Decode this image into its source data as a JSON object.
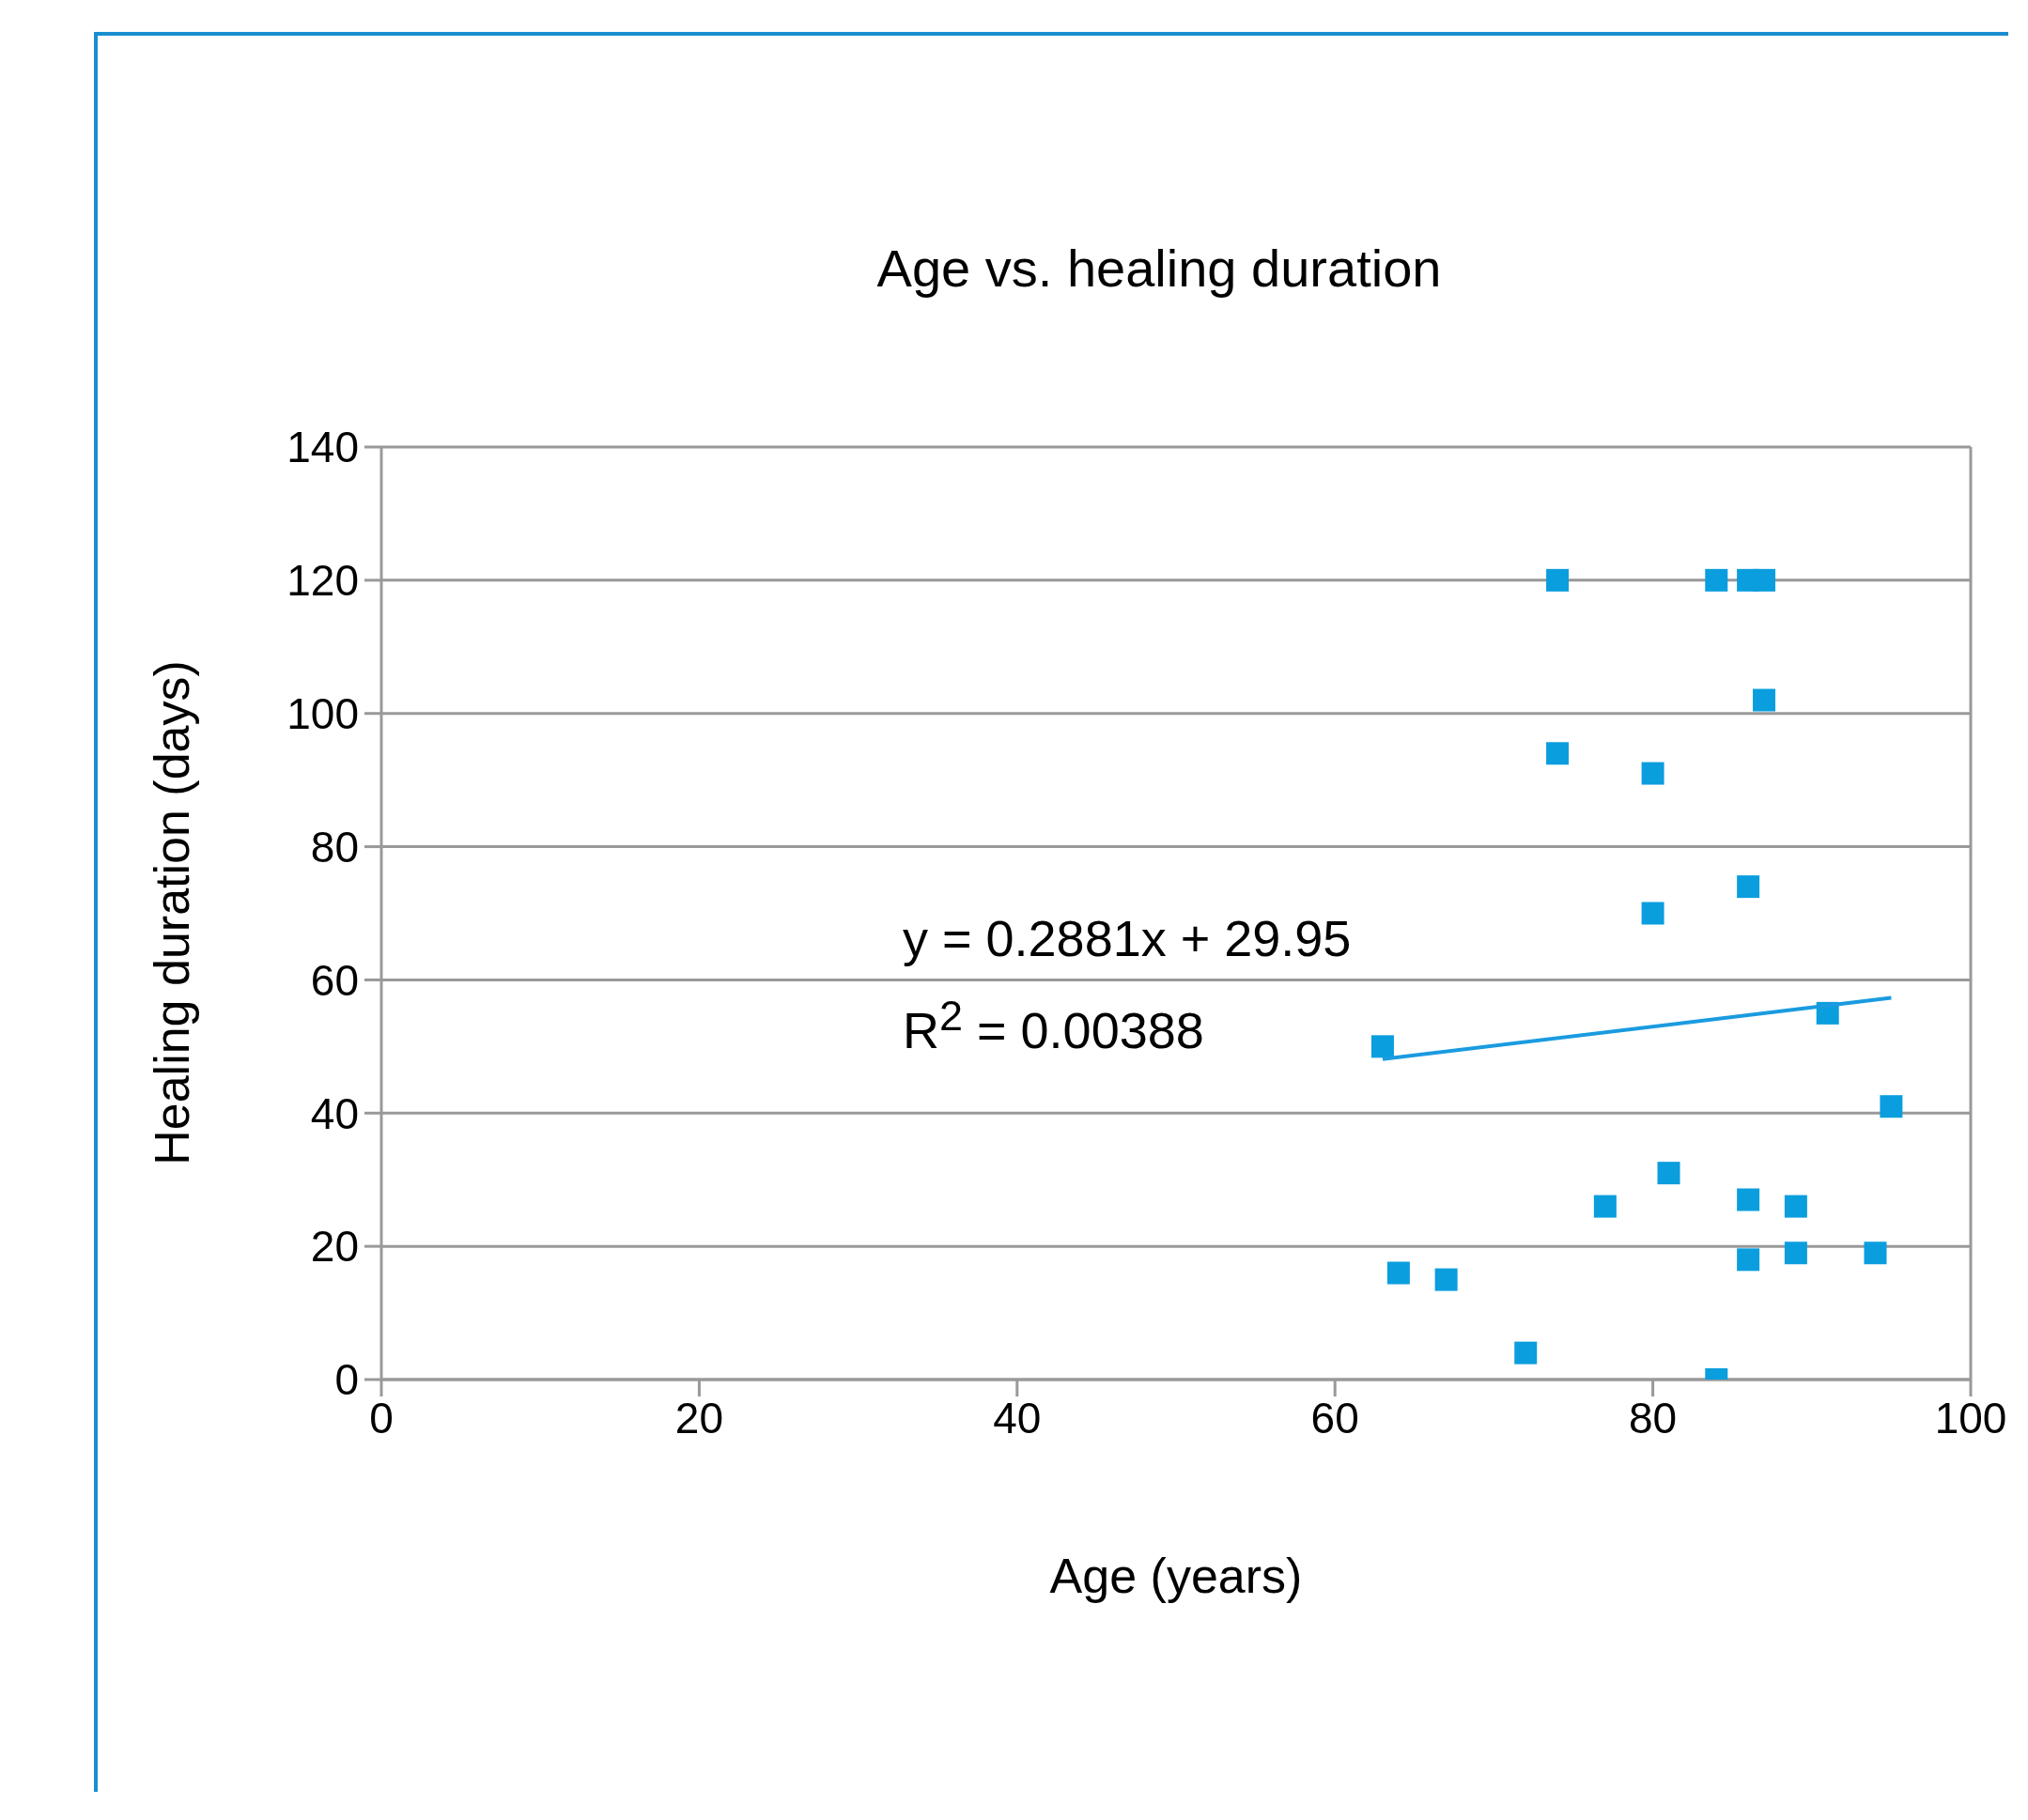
{
  "chart_data": {
    "type": "scatter",
    "title": "Age vs. healing duration",
    "xlabel": "Age (years)",
    "ylabel": "Healing duration (days)",
    "annotations": [
      "y = 0.2881x + 29.95",
      "R$^{2}$ = 0.00388"
    ],
    "series": [
      {
        "marker": "square",
        "color": "#0a9ede",
        "x": [
          74,
          84,
          86,
          87,
          87,
          74,
          80,
          86,
          80,
          63,
          91,
          95,
          81,
          77,
          86,
          89,
          86,
          89,
          94,
          64,
          67,
          72,
          84
        ],
        "values": [
          120,
          120,
          120,
          120,
          102,
          94,
          91,
          74,
          70,
          50,
          55,
          41,
          31,
          26,
          27,
          26,
          18,
          19,
          19,
          16,
          15,
          4,
          0
        ]
      },
      {
        "type": "line",
        "marker": "none",
        "color": "#1a9be0",
        "x": [
          63,
          95
        ],
        "values": [
          48.1,
          57.3
        ]
      }
    ],
    "xlim": [
      0,
      100
    ],
    "xticks": [
      0,
      20,
      40,
      60,
      80,
      100
    ],
    "ylim": [
      0,
      140
    ],
    "yticks": [
      0,
      20,
      40,
      60,
      80,
      100,
      120,
      140
    ],
    "grid": "y"
  }
}
